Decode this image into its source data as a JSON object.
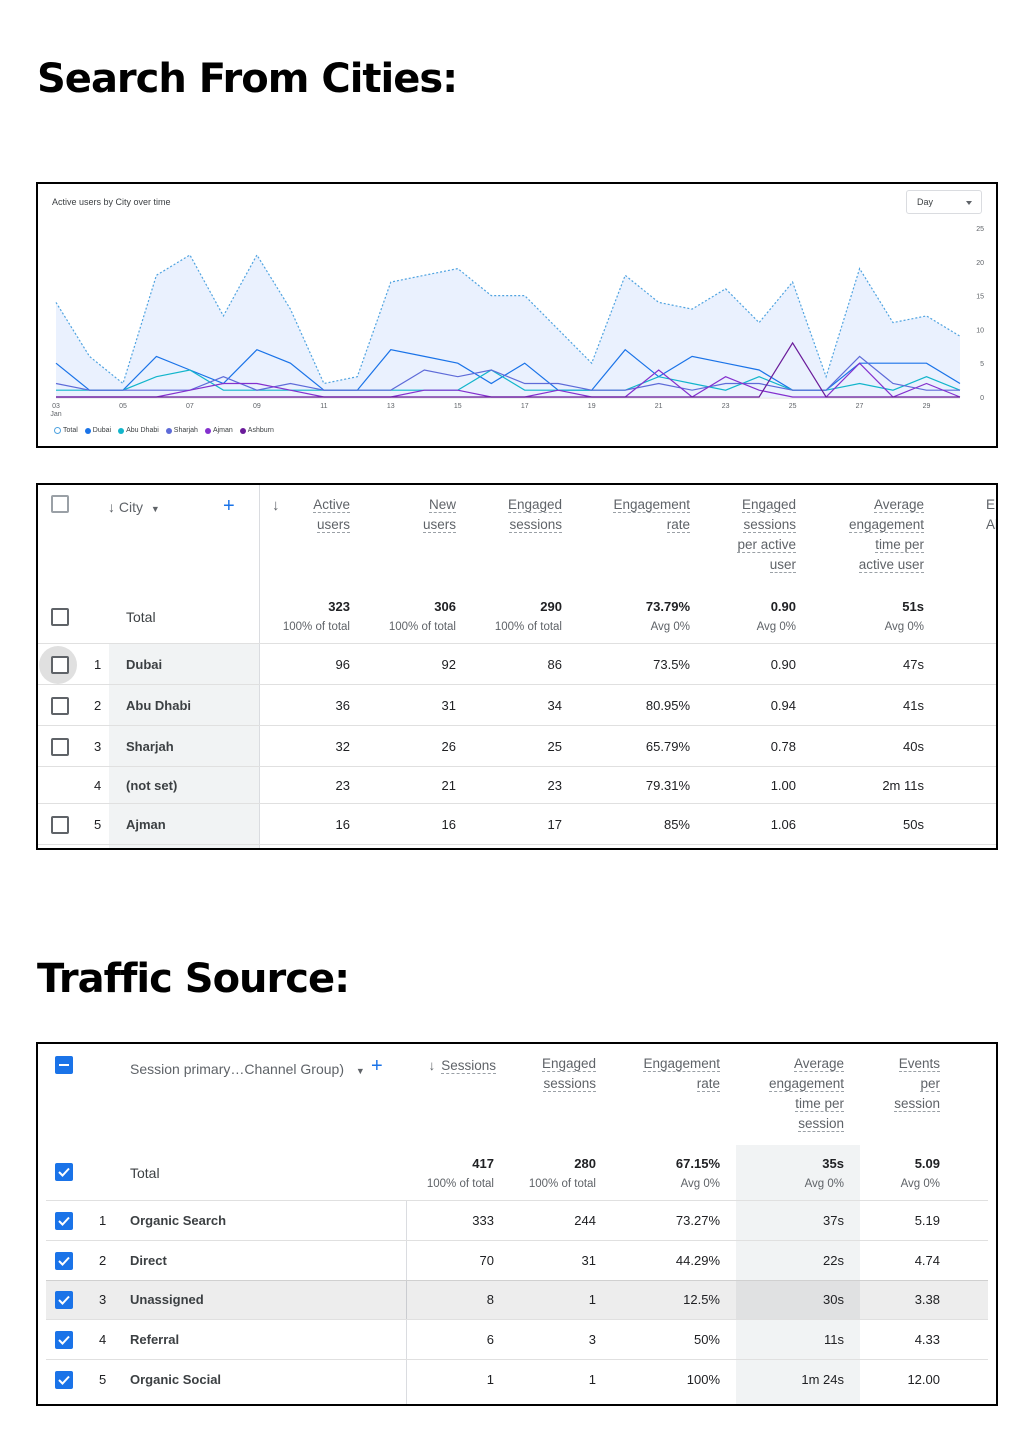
{
  "headings": {
    "cities": "Search From Cities:",
    "traffic": "Traffic Source:"
  },
  "chart": {
    "title": "Active users by City over time",
    "period_select": "Day",
    "legend": [
      {
        "name": "Total",
        "color": "#4fa3e0"
      },
      {
        "name": "Dubai",
        "color": "#1a73e8"
      },
      {
        "name": "Abu Dhabi",
        "color": "#12b5cb"
      },
      {
        "name": "Sharjah",
        "color": "#5e6bd8"
      },
      {
        "name": "Ajman",
        "color": "#8430ce"
      },
      {
        "name": "Ashburn",
        "color": "#6a1b9a"
      }
    ]
  },
  "chart_data": {
    "type": "line",
    "title": "Active users by City over time",
    "x_tick_labels": [
      "03 Jan",
      "05",
      "07",
      "09",
      "11",
      "13",
      "15",
      "17",
      "19",
      "21",
      "23",
      "25",
      "27",
      "29"
    ],
    "x": [
      3,
      4,
      5,
      6,
      7,
      8,
      9,
      10,
      11,
      12,
      13,
      14,
      15,
      16,
      17,
      18,
      19,
      20,
      21,
      22,
      23,
      24,
      25,
      26,
      27,
      28,
      29,
      30
    ],
    "ylim": [
      0,
      25
    ],
    "y_ticks": [
      0,
      5,
      10,
      15,
      20,
      25
    ],
    "series": [
      {
        "name": "Total",
        "values": [
          14,
          6,
          2,
          18,
          21,
          12,
          21,
          13,
          2,
          3,
          17,
          18,
          19,
          15,
          15,
          10,
          5,
          18,
          14,
          13,
          16,
          11,
          17,
          3,
          19,
          11,
          12,
          9
        ]
      },
      {
        "name": "Dubai",
        "values": [
          5,
          1,
          1,
          6,
          4,
          2,
          7,
          5,
          1,
          1,
          7,
          6,
          5,
          2,
          5,
          1,
          1,
          7,
          3,
          6,
          5,
          4,
          1,
          1,
          5,
          5,
          5,
          2
        ]
      },
      {
        "name": "Abu Dhabi",
        "values": [
          1,
          1,
          1,
          3,
          4,
          1,
          1,
          1,
          1,
          1,
          1,
          1,
          1,
          4,
          1,
          1,
          1,
          1,
          3,
          2,
          1,
          3,
          1,
          1,
          2,
          1,
          3,
          1
        ]
      },
      {
        "name": "Sharjah",
        "values": [
          2,
          1,
          1,
          1,
          1,
          3,
          1,
          2,
          1,
          1,
          1,
          4,
          3,
          4,
          2,
          2,
          1,
          1,
          2,
          1,
          2,
          2,
          1,
          1,
          6,
          2,
          1,
          1
        ]
      },
      {
        "name": "Ajman",
        "values": [
          0,
          0,
          0,
          0,
          1,
          2,
          2,
          1,
          0,
          0,
          0,
          1,
          1,
          0,
          0,
          1,
          0,
          0,
          4,
          0,
          3,
          1,
          0,
          0,
          5,
          0,
          2,
          0
        ]
      },
      {
        "name": "Ashburn",
        "values": [
          0,
          0,
          0,
          0,
          0,
          0,
          0,
          0,
          0,
          0,
          0,
          0,
          0,
          0,
          0,
          0,
          0,
          0,
          0,
          0,
          0,
          0,
          8,
          0,
          0,
          0,
          0,
          0
        ]
      }
    ]
  },
  "cities_table": {
    "headers": {
      "city": "City",
      "active_users": [
        "Active",
        "users"
      ],
      "new_users": [
        "New",
        "users"
      ],
      "engaged_sessions": [
        "Engaged",
        "sessions"
      ],
      "engagement_rate": [
        "Engagement",
        "rate"
      ],
      "engaged_per_user": [
        "Engaged",
        "sessions",
        "per active",
        "user"
      ],
      "avg_engagement": [
        "Average",
        "engagement",
        "time per",
        "active user"
      ],
      "clipped": [
        "E",
        "Al"
      ]
    },
    "total": {
      "label": "Total",
      "values": [
        "323",
        "306",
        "290",
        "73.79%",
        "0.90",
        "51s"
      ],
      "subs": [
        "100% of total",
        "100% of total",
        "100% of total",
        "Avg 0%",
        "Avg 0%",
        "Avg 0%"
      ]
    },
    "rows": [
      {
        "rank": "1",
        "city": "Dubai",
        "values": [
          "96",
          "92",
          "86",
          "73.5%",
          "0.90",
          "47s"
        ],
        "checkbox": true
      },
      {
        "rank": "2",
        "city": "Abu Dhabi",
        "values": [
          "36",
          "31",
          "34",
          "80.95%",
          "0.94",
          "41s"
        ],
        "checkbox": true
      },
      {
        "rank": "3",
        "city": "Sharjah",
        "values": [
          "32",
          "26",
          "25",
          "65.79%",
          "0.78",
          "40s"
        ],
        "checkbox": true
      },
      {
        "rank": "4",
        "city": "(not set)",
        "values": [
          "23",
          "21",
          "23",
          "79.31%",
          "1.00",
          "2m 11s"
        ],
        "checkbox": false
      },
      {
        "rank": "5",
        "city": "Ajman",
        "values": [
          "16",
          "16",
          "17",
          "85%",
          "1.06",
          "50s"
        ],
        "checkbox": true
      }
    ]
  },
  "traffic_table": {
    "headers": {
      "dimension": "Session primary…Channel Group)",
      "sessions": "Sessions",
      "engaged_sessions": [
        "Engaged",
        "sessions"
      ],
      "engagement_rate": [
        "Engagement",
        "rate"
      ],
      "avg_engagement": [
        "Average",
        "engagement",
        "time per",
        "session"
      ],
      "events": [
        "Events",
        "per",
        "session"
      ]
    },
    "total": {
      "label": "Total",
      "values": [
        "417",
        "280",
        "67.15%",
        "35s",
        "5.09"
      ],
      "subs": [
        "100% of total",
        "100% of total",
        "Avg 0%",
        "Avg 0%",
        "Avg 0%"
      ]
    },
    "rows": [
      {
        "rank": "1",
        "name": "Organic Search",
        "values": [
          "333",
          "244",
          "73.27%",
          "37s",
          "5.19"
        ]
      },
      {
        "rank": "2",
        "name": "Direct",
        "values": [
          "70",
          "31",
          "44.29%",
          "22s",
          "4.74"
        ]
      },
      {
        "rank": "3",
        "name": "Unassigned",
        "values": [
          "8",
          "1",
          "12.5%",
          "30s",
          "3.38"
        ]
      },
      {
        "rank": "4",
        "name": "Referral",
        "values": [
          "6",
          "3",
          "50%",
          "11s",
          "4.33"
        ]
      },
      {
        "rank": "5",
        "name": "Organic Social",
        "values": [
          "1",
          "1",
          "100%",
          "1m 24s",
          "12.00"
        ]
      }
    ]
  }
}
